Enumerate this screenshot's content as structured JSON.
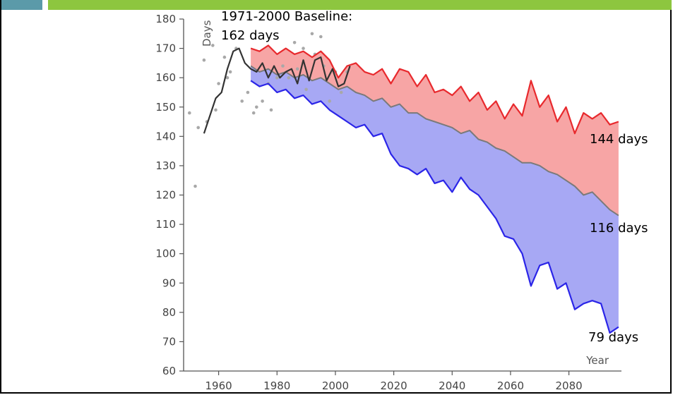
{
  "slide": {
    "accent_color": "#8dc63f",
    "square_color": "#5b9aa9"
  },
  "chart_data": {
    "type": "area",
    "title": "",
    "xlabel": "Year",
    "ylabel": "Days",
    "xlim": [
      1948,
      2098
    ],
    "ylim": [
      60,
      180
    ],
    "x_ticks": [
      1960,
      1980,
      2000,
      2020,
      2040,
      2060,
      2080
    ],
    "y_ticks": [
      60,
      70,
      80,
      90,
      100,
      110,
      120,
      130,
      140,
      150,
      160,
      170,
      180
    ],
    "grid": false,
    "annotations": {
      "baseline_line1": "1971-2000 Baseline:",
      "baseline_line2": "162 days",
      "high_end": "144 days",
      "mid_end": "116 days",
      "low_end": "79 days"
    },
    "colors": {
      "high": "#e8292d",
      "high_fill": "#f7a5a5",
      "low": "#2b25e8",
      "low_fill": "#a7a8f4",
      "mid": "#7a7a7a",
      "observed": "#333333",
      "scatter": "#a8a8a8"
    },
    "series": [
      {
        "key": "observed",
        "x": [
          1955,
          1957,
          1959,
          1961,
          1963,
          1965,
          1967,
          1969,
          1971,
          1973,
          1975,
          1977,
          1979,
          1981,
          1983,
          1985,
          1987,
          1989,
          1991,
          1993,
          1995,
          1997,
          1999,
          2001,
          2003,
          2005
        ],
        "values": [
          141,
          147,
          153,
          155,
          163,
          169,
          170,
          165,
          163,
          162,
          165,
          160,
          164,
          160,
          162,
          163,
          158,
          166,
          159,
          166,
          167,
          159,
          163,
          157,
          158,
          164
        ]
      },
      {
        "key": "high",
        "x": [
          1971,
          1974,
          1977,
          1980,
          1983,
          1986,
          1989,
          1992,
          1995,
          1998,
          2001,
          2004,
          2007,
          2010,
          2013,
          2016,
          2019,
          2022,
          2025,
          2028,
          2031,
          2034,
          2037,
          2040,
          2043,
          2046,
          2049,
          2052,
          2055,
          2058,
          2061,
          2064,
          2067,
          2070,
          2073,
          2076,
          2079,
          2082,
          2085,
          2088,
          2091,
          2094,
          2097
        ],
        "values": [
          170,
          169,
          171,
          168,
          170,
          168,
          169,
          167,
          169,
          166,
          160,
          164,
          165,
          162,
          161,
          163,
          158,
          163,
          162,
          157,
          161,
          155,
          156,
          154,
          157,
          152,
          155,
          149,
          152,
          146,
          151,
          147,
          159,
          150,
          154,
          145,
          150,
          141,
          148,
          146,
          148,
          144,
          145
        ]
      },
      {
        "key": "mid",
        "x": [
          1971,
          1974,
          1977,
          1980,
          1983,
          1986,
          1989,
          1992,
          1995,
          1998,
          2001,
          2004,
          2007,
          2010,
          2013,
          2016,
          2019,
          2022,
          2025,
          2028,
          2031,
          2034,
          2037,
          2040,
          2043,
          2046,
          2049,
          2052,
          2055,
          2058,
          2061,
          2064,
          2067,
          2070,
          2073,
          2076,
          2079,
          2082,
          2085,
          2088,
          2091,
          2094,
          2097
        ],
        "values": [
          164,
          162,
          163,
          161,
          162,
          160,
          161,
          159,
          160,
          158,
          156,
          157,
          155,
          154,
          152,
          153,
          150,
          151,
          148,
          148,
          146,
          145,
          144,
          143,
          141,
          142,
          139,
          138,
          136,
          135,
          133,
          131,
          131,
          130,
          128,
          127,
          125,
          123,
          120,
          121,
          118,
          115,
          113
        ]
      },
      {
        "key": "low",
        "x": [
          1971,
          1974,
          1977,
          1980,
          1983,
          1986,
          1989,
          1992,
          1995,
          1998,
          2001,
          2004,
          2007,
          2010,
          2013,
          2016,
          2019,
          2022,
          2025,
          2028,
          2031,
          2034,
          2037,
          2040,
          2043,
          2046,
          2049,
          2052,
          2055,
          2058,
          2061,
          2064,
          2067,
          2070,
          2073,
          2076,
          2079,
          2082,
          2085,
          2088,
          2091,
          2094,
          2097
        ],
        "values": [
          159,
          157,
          158,
          155,
          156,
          153,
          154,
          151,
          152,
          149,
          147,
          145,
          143,
          144,
          140,
          141,
          134,
          130,
          129,
          127,
          129,
          124,
          125,
          121,
          126,
          122,
          120,
          116,
          112,
          106,
          105,
          100,
          89,
          96,
          97,
          88,
          90,
          81,
          83,
          84,
          83,
          73,
          75
        ]
      }
    ],
    "scatter": {
      "x": [
        1950,
        1952,
        1953,
        1955,
        1956,
        1958,
        1959,
        1960,
        1962,
        1963,
        1964,
        1966,
        1968,
        1970,
        1972,
        1973,
        1975,
        1977,
        1978,
        1980,
        1982,
        1984,
        1986,
        1987,
        1989,
        1990,
        1992,
        1993,
        1995,
        1996,
        1998,
        2000,
        2002,
        2004
      ],
      "values": [
        148,
        123,
        143,
        166,
        145,
        171,
        149,
        158,
        167,
        160,
        162,
        170,
        152,
        155,
        148,
        150,
        152,
        158,
        149,
        160,
        164,
        160,
        172,
        163,
        170,
        156,
        175,
        168,
        174,
        164,
        152,
        162,
        155,
        162
      ]
    }
  }
}
